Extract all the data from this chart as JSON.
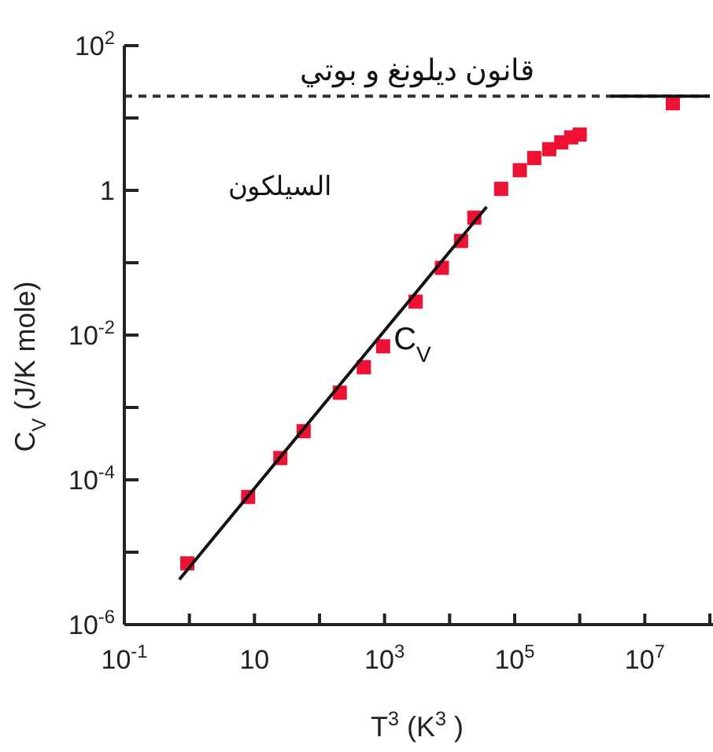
{
  "chart_data": {
    "type": "scatter",
    "title": "قانون ديلونغ و بوتي",
    "xlabel": "T$^{3}$ (K$^{3}$)",
    "ylabel": "C$_{V}$(J/K mole)",
    "annotations": [
      "السيلكون",
      "C$_{V}$"
    ],
    "log": "xy",
    "grid": false,
    "xlim": [
      0.1,
      100000000
    ],
    "ylim": [
      1e-06,
      100
    ],
    "xticks": [
      {
        "value": 0.1,
        "label": "10$^{-1}$"
      },
      {
        "value": 1,
        "label": null
      },
      {
        "value": 10,
        "label": "10"
      },
      {
        "value": 100,
        "label": null
      },
      {
        "value": 1000,
        "label": "10$^{3}$"
      },
      {
        "value": 10000,
        "label": null
      },
      {
        "value": 100000,
        "label": "10$^{5}$"
      },
      {
        "value": 1000000,
        "label": null
      },
      {
        "value": 10000000,
        "label": "10$^{7}$"
      },
      {
        "value": 100000000,
        "label": null
      }
    ],
    "yticks": [
      {
        "value": 1e-06,
        "label": "10$^{-6}$"
      },
      {
        "value": 1e-05,
        "label": null
      },
      {
        "value": 0.0001,
        "label": "10$^{-4}$"
      },
      {
        "value": 0.001,
        "label": null
      },
      {
        "value": 0.01,
        "label": "10$^{-2}$"
      },
      {
        "value": 0.1,
        "label": null
      },
      {
        "value": 1,
        "label": "1"
      },
      {
        "value": 10,
        "label": null
      },
      {
        "value": 100,
        "label": "10$^{2}$"
      }
    ],
    "ref_lines": [
      {
        "axis": "y",
        "value": 20,
        "color": "#333333",
        "line_style": "dashed"
      }
    ],
    "series": [
      {
        "marker": "square",
        "color": "#ee1133",
        "x": [
          0.93,
          8,
          25,
          57,
          205,
          480,
          950,
          3000,
          7600,
          15000,
          24000,
          62000,
          120000,
          200000,
          340000,
          520000,
          740000,
          1000000,
          27000000
        ],
        "values": [
          7e-06,
          5.8e-05,
          0.0002,
          0.00047,
          0.0016,
          0.0036,
          0.007,
          0.029,
          0.085,
          0.2,
          0.42,
          1.05,
          1.9,
          2.8,
          3.7,
          4.6,
          5.4,
          5.9,
          16
        ]
      },
      {
        "type": "line",
        "marker": "none",
        "color": "#111111",
        "line_style": "solid",
        "x": [
          0.7,
          37000
        ],
        "values": [
          4.2e-06,
          0.59
        ]
      },
      {
        "type": "line",
        "marker": "none",
        "color": "#111111",
        "line_style": "solid",
        "x": [
          3000000,
          100000000
        ],
        "values": [
          20,
          20
        ]
      }
    ]
  }
}
